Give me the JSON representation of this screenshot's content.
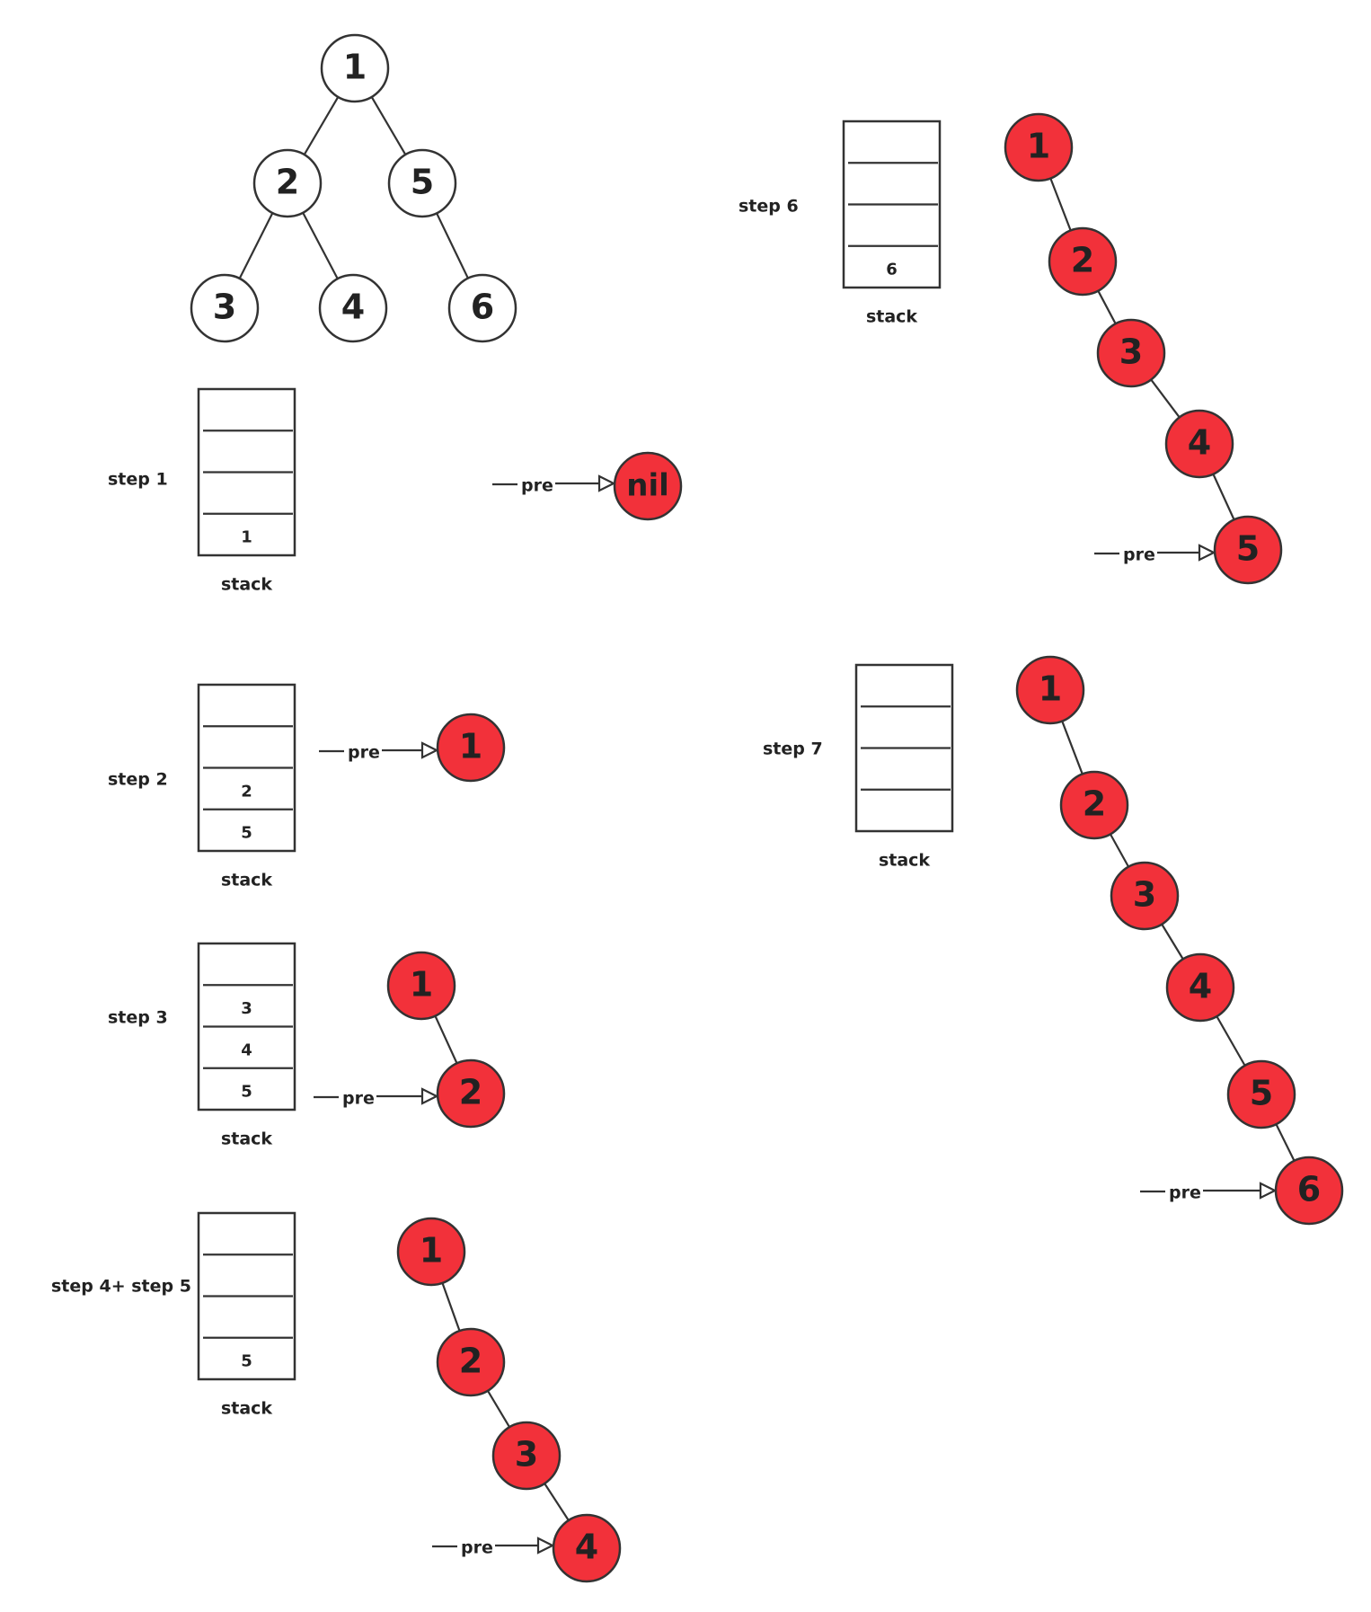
{
  "colors": {
    "stroke": "#333333",
    "node_fill_plain": "#ffffff",
    "node_fill_red": "#f2313a",
    "background": "#ffffff"
  },
  "tree": {
    "nodes": [
      "1",
      "2",
      "5",
      "3",
      "4",
      "6"
    ],
    "edges": [
      [
        "1",
        "2"
      ],
      [
        "1",
        "5"
      ],
      [
        "2",
        "3"
      ],
      [
        "2",
        "4"
      ],
      [
        "5",
        "6"
      ]
    ]
  },
  "stack_caption": "stack",
  "pointer_label": "pre",
  "steps": [
    {
      "label": "step 1",
      "stack": [
        "",
        "",
        "",
        "1"
      ],
      "chain": [
        "nil"
      ],
      "pre": "nil"
    },
    {
      "label": "step 2",
      "stack": [
        "",
        "",
        "2",
        "5"
      ],
      "chain": [
        "1"
      ],
      "pre": "1"
    },
    {
      "label": "step 3",
      "stack": [
        "",
        "3",
        "4",
        "5"
      ],
      "chain": [
        "1",
        "2"
      ],
      "pre": "2"
    },
    {
      "label": "step 4+ step 5",
      "stack": [
        "",
        "",
        "",
        "5"
      ],
      "chain": [
        "1",
        "2",
        "3",
        "4"
      ],
      "pre": "4"
    },
    {
      "label": "step 6",
      "stack": [
        "",
        "",
        "",
        "6"
      ],
      "chain": [
        "1",
        "2",
        "3",
        "4",
        "5"
      ],
      "pre": "5"
    },
    {
      "label": "step 7",
      "stack": [
        "",
        "",
        "",
        ""
      ],
      "chain": [
        "1",
        "2",
        "3",
        "4",
        "5",
        "6"
      ],
      "pre": "6"
    }
  ]
}
